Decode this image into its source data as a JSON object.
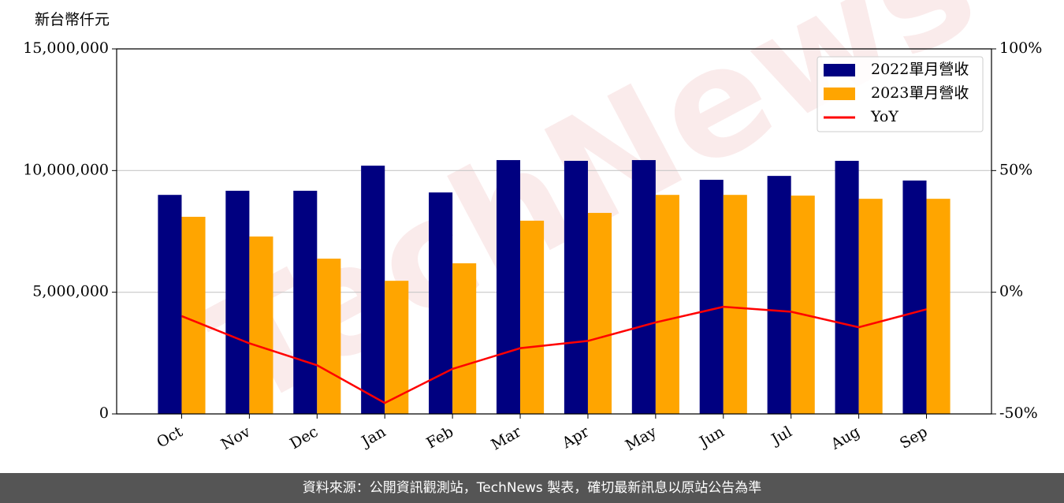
{
  "chart_data": {
    "type": "bar",
    "y_label": "新台幣仟元",
    "watermark": "TechNews",
    "categories": [
      "Oct",
      "Nov",
      "Dec",
      "Jan",
      "Feb",
      "Mar",
      "Apr",
      "May",
      "Jun",
      "Jul",
      "Aug",
      "Sep"
    ],
    "series": [
      {
        "name": "2022單月營收",
        "color": "#000080",
        "values": [
          9000000,
          9170000,
          9170000,
          10200000,
          9100000,
          10430000,
          10400000,
          10430000,
          9620000,
          9780000,
          10400000,
          9590000
        ]
      },
      {
        "name": "2023單月營收",
        "color": "#ffa500",
        "values": [
          8100000,
          7290000,
          6380000,
          5470000,
          6190000,
          7940000,
          8260000,
          9000000,
          9000000,
          8970000,
          8840000,
          8840000
        ]
      },
      {
        "name": "YoY",
        "color": "#ff0000",
        "type": "line",
        "axis": "y2",
        "values": [
          -9.8,
          -21,
          -30,
          -45.5,
          -31.5,
          -23,
          -20,
          -12.4,
          -6,
          -8,
          -14.4,
          -7
        ]
      }
    ],
    "ylim": [
      0,
      15000000
    ],
    "yticks": [
      0,
      {
        "value": 5000000,
        "label": "5,000,000"
      },
      {
        "value": 10000000,
        "label": "10,000,000"
      },
      {
        "value": 15000000,
        "label": "15,000,000"
      }
    ],
    "y2lim": [
      -50,
      100
    ],
    "y2ticks": [
      {
        "value": -50,
        "label": "-50%"
      },
      {
        "value": 0,
        "label": "0%"
      },
      {
        "value": 50,
        "label": "50%"
      },
      {
        "value": 100,
        "label": "100%"
      }
    ],
    "grid": true,
    "legend": "upper right"
  },
  "footer": "資料來源：公開資訊觀測站，TechNews 製表，確切最新訊息以原站公告為準"
}
